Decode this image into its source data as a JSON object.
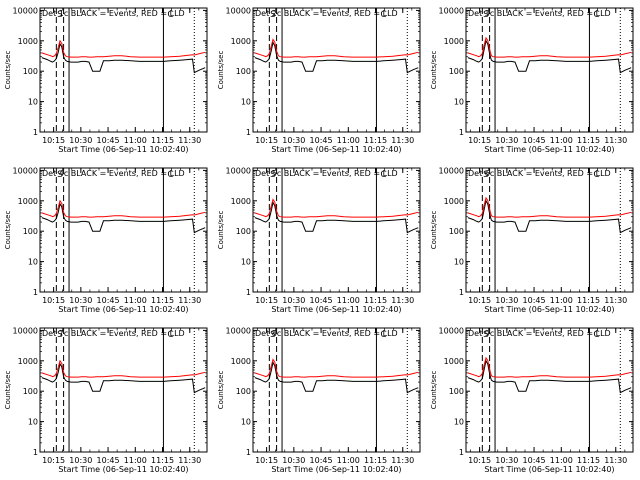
{
  "figure": {
    "panels": [
      {
        "title": "Det 1c BLACK = Events, RED = LLD",
        "spike": 1.0,
        "red_offset": 1.55
      },
      {
        "title": "Det 2c BLACK = Events, RED = LLD",
        "spike": 1.1,
        "red_offset": 1.6
      },
      {
        "title": "Det 3c BLACK = Events, RED = LLD",
        "spike": 1.25,
        "red_offset": 1.7
      },
      {
        "title": "Det 4c BLACK = Events, RED = LLD",
        "spike": 1.0,
        "red_offset": 1.55
      },
      {
        "title": "Det 5c BLACK = Events, RED = LLD",
        "spike": 1.1,
        "red_offset": 1.6
      },
      {
        "title": "Det 6c BLACK = Events, RED = LLD",
        "spike": 1.25,
        "red_offset": 1.7
      },
      {
        "title": "Det 7c BLACK = Events, RED = LLD",
        "spike": 1.0,
        "red_offset": 1.55
      },
      {
        "title": "Det 8c BLACK = Events, RED = LLD",
        "spike": 1.1,
        "red_offset": 1.6
      },
      {
        "title": "Det 9c BLACK = Events, RED = LLD",
        "spike": 1.25,
        "red_offset": 1.7
      }
    ],
    "xlabel": "Start Time (06-Sep-11 10:02:40)",
    "ylabel": "Counts/sec",
    "xticks": [
      {
        "label": "10:15",
        "value": 12.5
      },
      {
        "label": "10:30",
        "value": 27.5
      },
      {
        "label": "10:45",
        "value": 42.5
      },
      {
        "label": "11:00",
        "value": 57.5
      },
      {
        "label": "11:15",
        "value": 72.5
      },
      {
        "label": "11:30",
        "value": 87.5
      }
    ],
    "yticks": [
      {
        "label": "1",
        "value": 1
      },
      {
        "label": "10",
        "value": 10
      },
      {
        "label": "100",
        "value": 100
      },
      {
        "label": "1000",
        "value": 1000
      },
      {
        "label": "10000",
        "value": 10000
      }
    ],
    "markers": [
      {
        "label": "S",
        "x": 16
      }
    ],
    "mark_c": "C"
  },
  "chart_data": {
    "type": "line",
    "x_unit": "minutes after 10:02:40",
    "xlim": [
      5,
      97
    ],
    "ylim": [
      1,
      12000
    ],
    "yscale": "log",
    "series": [
      {
        "name": "Events",
        "color": "#000000"
      },
      {
        "name": "LLD",
        "color": "#ff0000"
      }
    ],
    "vertical_lines": {
      "dashed": [
        14,
        18
      ],
      "solid": [
        21,
        73
      ],
      "dotted": [
        90,
        97
      ]
    },
    "x": [
      6,
      9,
      11,
      12,
      13,
      14,
      15,
      16,
      17,
      18,
      19,
      20,
      22,
      24,
      26,
      28,
      30,
      32,
      34,
      36,
      38,
      40,
      43,
      46,
      50,
      55,
      60,
      65,
      70,
      73,
      77,
      82,
      86,
      89,
      90,
      93,
      96
    ],
    "events_base": [
      280,
      240,
      210,
      200,
      220,
      260,
      420,
      800,
      620,
      300,
      230,
      210,
      200,
      200,
      200,
      210,
      210,
      200,
      100,
      100,
      100,
      220,
      220,
      230,
      230,
      220,
      210,
      210,
      210,
      210,
      220,
      230,
      240,
      250,
      90,
      110,
      130
    ],
    "lld_base": [
      400,
      350,
      320,
      300,
      320,
      380,
      600,
      1000,
      820,
      420,
      320,
      300,
      290,
      290,
      290,
      300,
      300,
      290,
      290,
      300,
      300,
      300,
      310,
      320,
      320,
      300,
      290,
      290,
      290,
      290,
      300,
      310,
      330,
      350,
      340,
      380,
      420
    ]
  }
}
